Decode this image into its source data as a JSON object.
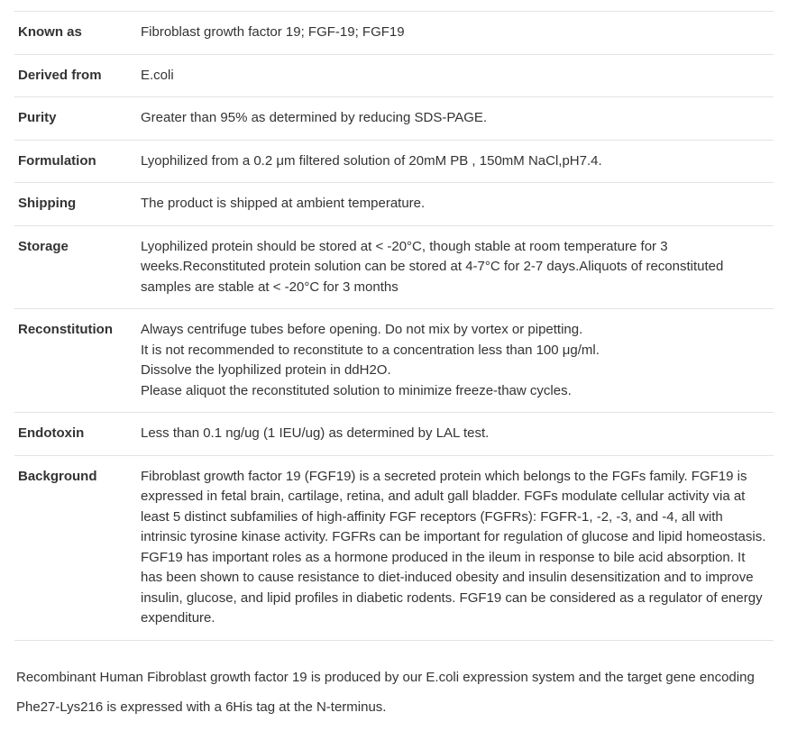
{
  "table": {
    "border_color": "#e3e3e3",
    "label_fontweight": "700",
    "text_color": "#333333",
    "rows": [
      {
        "label": "Known as",
        "lines": [
          "Fibroblast growth factor 19; FGF-19; FGF19"
        ]
      },
      {
        "label": "Derived from",
        "lines": [
          "E.coli"
        ]
      },
      {
        "label": "Purity",
        "lines": [
          "Greater than 95% as determined by reducing SDS-PAGE."
        ]
      },
      {
        "label": "Formulation",
        "lines": [
          "Lyophilized from a 0.2 μm filtered solution of 20mM PB , 150mM NaCl,pH7.4."
        ]
      },
      {
        "label": "Shipping",
        "lines": [
          "The product is shipped at ambient temperature."
        ]
      },
      {
        "label": "Storage",
        "lines": [
          "Lyophilized protein should be stored at < -20°C, though stable at room temperature for 3 weeks.Reconstituted protein solution can be stored at 4-7°C for 2-7 days.Aliquots of reconstituted samples are stable at < -20°C for 3 months"
        ]
      },
      {
        "label": "Reconstitution",
        "lines": [
          "Always centrifuge tubes before opening. Do not mix by vortex or pipetting.",
          "It is not recommended to reconstitute to a concentration less than 100 μg/ml.",
          "Dissolve the lyophilized protein in ddH2O.",
          "Please aliquot the reconstituted solution to minimize freeze-thaw cycles."
        ]
      },
      {
        "label": "Endotoxin",
        "lines": [
          "Less than 0.1 ng/ug (1 IEU/ug) as determined by LAL test."
        ]
      },
      {
        "label": "Background",
        "lines": [
          "Fibroblast growth factor 19 (FGF19) is a secreted protein which belongs to the FGFs family. FGF19 is expressed in fetal brain, cartilage, retina, and adult gall bladder. FGFs modulate cellular activity via at least 5 distinct subfamilies of high-affinity FGF receptors (FGFRs): FGFR-1, -2, -3, and -4, all with intrinsic tyrosine kinase activity. FGFRs can be important for regulation of glucose and lipid homeostasis. FGF19 has important roles as a hormone produced in the ileum in response to bile acid absorption. It has been shown to cause resistance to diet-induced obesity and insulin desensitization and to improve insulin, glucose, and lipid profiles in diabetic rodents. FGF19 can be considered as a regulator of energy expenditure."
        ]
      }
    ]
  },
  "footer": {
    "text": "Recombinant Human Fibroblast growth factor 19 is produced by our E.coli expression system and the target gene encoding Phe27-Lys216 is expressed with a 6His tag at the N-terminus."
  }
}
